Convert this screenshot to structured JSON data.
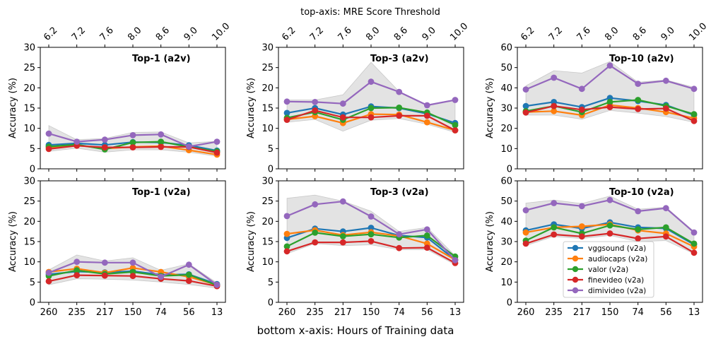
{
  "figure": {
    "top_axis_title": "top-axis: MRE Score Threshold",
    "bottom_axis_title": "bottom x-axis: Hours of Training data"
  },
  "chart_data": [
    {
      "type": "line",
      "title": "Top-1 (a2v)",
      "ylabel": "Accuracy (%)",
      "ylim": [
        0,
        30
      ],
      "yticks": [
        "0",
        "5",
        "10",
        "15",
        "20",
        "25",
        "30"
      ],
      "categories": [
        "260",
        "235",
        "217",
        "150",
        "74",
        "56",
        "13"
      ],
      "top_categories": [
        "6.2",
        "7.2",
        "7.6",
        "8.0",
        "8.6",
        "9.0",
        "10.0"
      ],
      "band": {
        "upper": [
          10.7,
          7.2,
          7.5,
          9.0,
          9.1,
          6.4,
          6.8
        ],
        "lower": [
          4.3,
          5.1,
          4.1,
          4.7,
          4.7,
          4.1,
          3.1
        ]
      },
      "series": [
        {
          "name": "vggsound",
          "values": [
            5.9,
            6.3,
            5.9,
            6.6,
            6.5,
            5.8,
            4.5
          ]
        },
        {
          "name": "audiocaps",
          "values": [
            5.3,
            5.8,
            5.0,
            5.4,
            5.6,
            4.6,
            3.5
          ]
        },
        {
          "name": "valor",
          "values": [
            5.5,
            6.0,
            4.8,
            6.5,
            6.7,
            5.4,
            4.3
          ]
        },
        {
          "name": "finevideo",
          "values": [
            4.9,
            5.7,
            5.3,
            5.3,
            5.4,
            5.4,
            4.0
          ]
        },
        {
          "name": "dimivideo",
          "values": [
            8.7,
            6.7,
            7.2,
            8.3,
            8.5,
            5.5,
            6.7
          ]
        }
      ]
    },
    {
      "type": "line",
      "title": "Top-3 (a2v)",
      "ylabel": "Accuracy (%)",
      "ylim": [
        0,
        30
      ],
      "yticks": [
        "0",
        "5",
        "10",
        "15",
        "20",
        "25",
        "30"
      ],
      "categories": [
        "260",
        "235",
        "217",
        "150",
        "74",
        "56",
        "13"
      ],
      "top_categories": [
        "6.2",
        "7.2",
        "7.6",
        "8.0",
        "8.6",
        "9.0",
        "10.0"
      ],
      "band": {
        "upper": [
          17.0,
          17.0,
          18.3,
          26.3,
          19.1,
          15.8,
          17.1
        ],
        "lower": [
          11.5,
          12.2,
          9.3,
          12.0,
          12.4,
          11.0,
          9.0
        ]
      },
      "series": [
        {
          "name": "vggsound",
          "values": [
            13.8,
            15.0,
            13.4,
            15.4,
            15.0,
            13.6,
            11.3
          ]
        },
        {
          "name": "audiocaps",
          "values": [
            12.2,
            13.0,
            11.3,
            13.5,
            13.4,
            11.5,
            9.5
          ]
        },
        {
          "name": "valor",
          "values": [
            12.6,
            14.0,
            12.1,
            15.0,
            15.1,
            13.9,
            10.8
          ]
        },
        {
          "name": "finevideo",
          "values": [
            12.1,
            14.4,
            12.7,
            12.7,
            13.1,
            13.1,
            9.5
          ]
        },
        {
          "name": "dimivideo",
          "values": [
            16.6,
            16.5,
            16.1,
            21.5,
            19.0,
            15.7,
            17.0
          ]
        }
      ]
    },
    {
      "type": "line",
      "title": "Top-10 (a2v)",
      "ylabel": "Accuracy (%)",
      "ylim": [
        0,
        60
      ],
      "yticks": [
        "0",
        "10",
        "20",
        "30",
        "40",
        "50",
        "60"
      ],
      "categories": [
        "260",
        "235",
        "217",
        "150",
        "74",
        "56",
        "13"
      ],
      "top_categories": [
        "6.2",
        "7.2",
        "7.6",
        "8.0",
        "8.6",
        "9.0",
        "10.0"
      ],
      "band": {
        "upper": [
          41.0,
          48.5,
          47.3,
          53.0,
          42.8,
          43.9,
          40.3
        ],
        "lower": [
          26.5,
          26.5,
          24.5,
          28.8,
          27.5,
          25.8,
          23.0
        ]
      },
      "series": [
        {
          "name": "vggsound",
          "values": [
            31.0,
            33.0,
            30.5,
            35.0,
            33.5,
            31.5,
            26.5
          ]
        },
        {
          "name": "audiocaps",
          "values": [
            28.0,
            28.5,
            26.5,
            31.5,
            30.0,
            28.0,
            25.0
          ]
        },
        {
          "name": "valor",
          "values": [
            28.5,
            31.0,
            28.0,
            33.0,
            34.0,
            31.0,
            27.0
          ]
        },
        {
          "name": "finevideo",
          "values": [
            27.8,
            31.0,
            29.2,
            30.5,
            29.5,
            29.8,
            23.6
          ]
        },
        {
          "name": "dimivideo",
          "values": [
            39.2,
            45.0,
            39.5,
            51.0,
            42.0,
            43.5,
            39.5
          ]
        }
      ]
    },
    {
      "type": "line",
      "title": "Top-1 (v2a)",
      "ylabel": "Accuracy (%)",
      "ylim": [
        0,
        30
      ],
      "yticks": [
        "0",
        "5",
        "10",
        "15",
        "20",
        "25",
        "30"
      ],
      "categories": [
        "260",
        "235",
        "217",
        "150",
        "74",
        "56",
        "13"
      ],
      "top_categories": [
        "6.2",
        "7.2",
        "7.6",
        "8.0",
        "8.6",
        "9.0",
        "10.0"
      ],
      "band": {
        "upper": [
          8.0,
          11.7,
          10.2,
          11.0,
          7.9,
          9.5,
          4.8
        ],
        "lower": [
          4.3,
          5.8,
          5.7,
          5.5,
          5.0,
          4.4,
          3.5
        ]
      },
      "series": [
        {
          "name": "vggsound",
          "values": [
            6.9,
            7.6,
            7.4,
            7.7,
            6.8,
            6.9,
            4.5
          ]
        },
        {
          "name": "audiocaps",
          "values": [
            7.5,
            8.3,
            7.3,
            8.5,
            7.5,
            6.3,
            4.3
          ]
        },
        {
          "name": "valor",
          "values": [
            6.5,
            7.9,
            7.0,
            7.5,
            6.5,
            6.8,
            4.2
          ]
        },
        {
          "name": "finevideo",
          "values": [
            5.2,
            6.7,
            6.6,
            6.5,
            5.8,
            5.3,
            4.0
          ]
        },
        {
          "name": "dimivideo",
          "values": [
            7.3,
            10.0,
            9.8,
            9.8,
            6.3,
            9.3,
            4.3
          ]
        }
      ]
    },
    {
      "type": "line",
      "title": "Top-3 (v2a)",
      "ylabel": "Accuracy (%)",
      "ylim": [
        0,
        30
      ],
      "yticks": [
        "0",
        "5",
        "10",
        "15",
        "20",
        "25",
        "30"
      ],
      "categories": [
        "260",
        "235",
        "217",
        "150",
        "74",
        "56",
        "13"
      ],
      "top_categories": [
        "6.2",
        "7.2",
        "7.6",
        "8.0",
        "8.6",
        "9.0",
        "10.0"
      ],
      "band": {
        "upper": [
          25.7,
          26.5,
          25.0,
          22.5,
          17.5,
          18.5,
          11.5
        ],
        "lower": [
          12.0,
          14.5,
          14.0,
          14.2,
          13.0,
          13.0,
          9.3
        ]
      },
      "series": [
        {
          "name": "vggsound",
          "values": [
            15.9,
            18.2,
            17.5,
            18.4,
            16.5,
            16.0,
            10.5
          ]
        },
        {
          "name": "audiocaps",
          "values": [
            16.9,
            17.8,
            16.6,
            17.3,
            16.4,
            14.5,
            10.5
          ]
        },
        {
          "name": "valor",
          "values": [
            13.8,
            17.2,
            16.3,
            16.8,
            16.0,
            16.5,
            11.3
          ]
        },
        {
          "name": "finevideo",
          "values": [
            12.6,
            14.8,
            14.8,
            15.1,
            13.4,
            13.5,
            9.7
          ]
        },
        {
          "name": "dimivideo",
          "values": [
            21.3,
            24.2,
            24.9,
            21.2,
            16.8,
            18.0,
            10.4
          ]
        }
      ]
    },
    {
      "type": "line",
      "title": "Top-10 (v2a)",
      "ylabel": "Accuracy (%)",
      "ylim": [
        0,
        60
      ],
      "yticks": [
        "0",
        "10",
        "20",
        "30",
        "40",
        "50",
        "60"
      ],
      "categories": [
        "260",
        "235",
        "217",
        "150",
        "74",
        "56",
        "13"
      ],
      "top_categories": [
        "6.2",
        "7.2",
        "7.6",
        "8.0",
        "8.6",
        "9.0",
        "10.0"
      ],
      "band": {
        "upper": [
          49.0,
          50.5,
          48.8,
          52.5,
          46.0,
          47.0,
          35.0
        ],
        "lower": [
          28.0,
          32.5,
          31.5,
          33.0,
          30.0,
          30.5,
          24.0
        ]
      },
      "series": [
        {
          "name": "vggsound",
          "values": [
            35.5,
            38.5,
            36.5,
            39.5,
            37.0,
            36.5,
            28.5
          ]
        },
        {
          "name": "audiocaps",
          "values": [
            34.5,
            37.0,
            37.5,
            38.5,
            35.5,
            34.0,
            27.5
          ]
        },
        {
          "name": "valor",
          "values": [
            30.5,
            37.0,
            34.0,
            38.0,
            36.0,
            37.0,
            29.0
          ]
        },
        {
          "name": "finevideo",
          "values": [
            29.0,
            33.5,
            32.5,
            34.0,
            31.5,
            32.5,
            24.5
          ]
        },
        {
          "name": "dimivideo",
          "values": [
            45.5,
            49.0,
            47.5,
            50.5,
            45.0,
            46.5,
            34.5
          ]
        }
      ]
    }
  ],
  "legend": {
    "placement": "lower-center of Top-10 (v2a)",
    "entries": [
      "vggsound (v2a)",
      "audiocaps (v2a)",
      "valor (v2a)",
      "finevideo (v2a)",
      "dimivideo (v2a)"
    ]
  },
  "colors": {
    "vggsound": "#1f77b4",
    "audiocaps": "#ff7f0e",
    "valor": "#2ca02c",
    "finevideo": "#d62728",
    "dimivideo": "#9467bd",
    "band": "#808080"
  }
}
